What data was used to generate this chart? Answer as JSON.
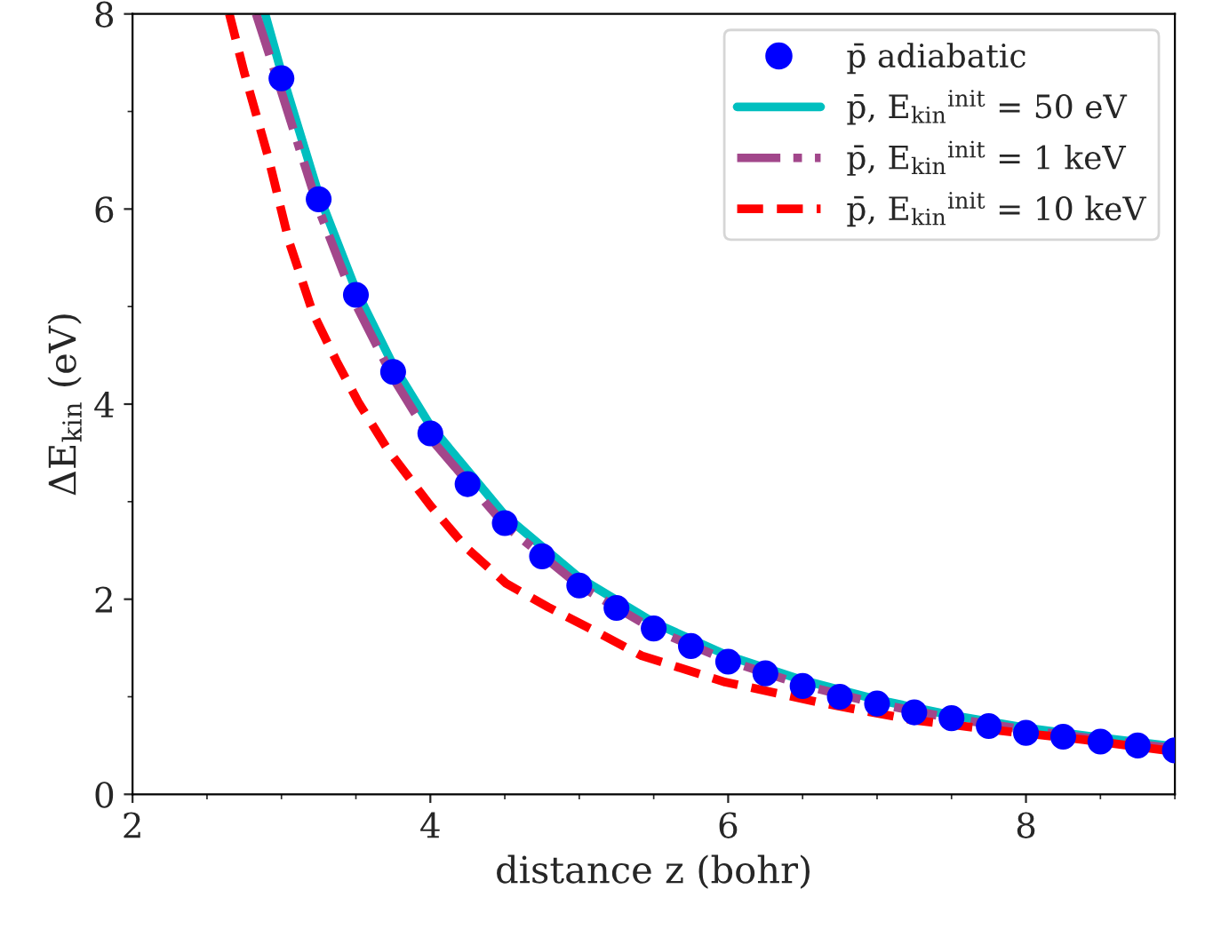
{
  "chart_data": {
    "type": "line",
    "xlabel": "distance z (bohr)",
    "ylabel": "ΔE$_{kin}$ (eV)",
    "xlim": [
      2,
      9
    ],
    "ylim": [
      0,
      8
    ],
    "xticks": [
      2,
      4,
      6,
      8
    ],
    "yticks": [
      0,
      2,
      4,
      6,
      8
    ],
    "grid": false,
    "legend": "top right",
    "series": [
      {
        "name": "p̄ adiabatic",
        "type": "scatter",
        "marker": "circle",
        "color": "#0000ff",
        "x": [
          3,
          3.25,
          3.5,
          3.75,
          4,
          4.25,
          4.5,
          4.75,
          5,
          5.25,
          5.5,
          5.75,
          6,
          6.25,
          6.5,
          6.75,
          7,
          7.25,
          7.5,
          7.75,
          8,
          8.25,
          8.5,
          8.75,
          9
        ],
        "values": [
          7.34,
          6.1,
          5.12,
          4.33,
          3.7,
          3.18,
          2.78,
          2.44,
          2.14,
          1.91,
          1.7,
          1.52,
          1.36,
          1.24,
          1.11,
          1.0,
          0.93,
          0.84,
          0.78,
          0.7,
          0.63,
          0.59,
          0.54,
          0.5,
          0.45
        ]
      },
      {
        "name": "p̄, E$_{kin}$$^{init}$ = 50 eV",
        "line_style": "solid",
        "color": "#00bfbf",
        "x": [
          2.89,
          3,
          3.25,
          3.5,
          3.75,
          4,
          4.5,
          5,
          5.5,
          6,
          6.5,
          7,
          7.5,
          8,
          8.5,
          9
        ],
        "values": [
          8,
          7.4,
          6.15,
          5.17,
          4.4,
          3.78,
          2.86,
          2.22,
          1.76,
          1.42,
          1.17,
          0.97,
          0.81,
          0.68,
          0.58,
          0.49
        ]
      },
      {
        "name": "p̄, E$_{kin}$$^{init}$ = 1 keV",
        "line_style": "dashdot",
        "color": "#a2478b",
        "x": [
          2.83,
          3,
          3.25,
          3.5,
          3.75,
          4,
          4.5,
          5,
          5.5,
          6,
          6.5,
          7,
          7.5,
          8,
          8.5,
          9
        ],
        "values": [
          8,
          7.2,
          6.0,
          5.02,
          4.27,
          3.65,
          2.76,
          2.14,
          1.69,
          1.37,
          1.12,
          0.93,
          0.78,
          0.66,
          0.56,
          0.47
        ]
      },
      {
        "name": "p̄, E$_{kin}$$^{init}$ = 10 keV",
        "line_style": "dashed",
        "color": "#ff0000",
        "x": [
          2.65,
          2.75,
          2.91,
          3.05,
          3.21,
          3.37,
          3.52,
          3.72,
          4.0,
          4.24,
          4.51,
          4.79,
          5.11,
          5.42,
          5.98,
          6.65,
          7.25,
          7.84,
          8.39,
          8.99
        ],
        "values": [
          8,
          7.4,
          6.54,
          5.67,
          4.94,
          4.44,
          4.01,
          3.52,
          2.96,
          2.53,
          2.16,
          1.92,
          1.67,
          1.42,
          1.15,
          0.93,
          0.76,
          0.65,
          0.56,
          0.44
        ]
      }
    ]
  }
}
